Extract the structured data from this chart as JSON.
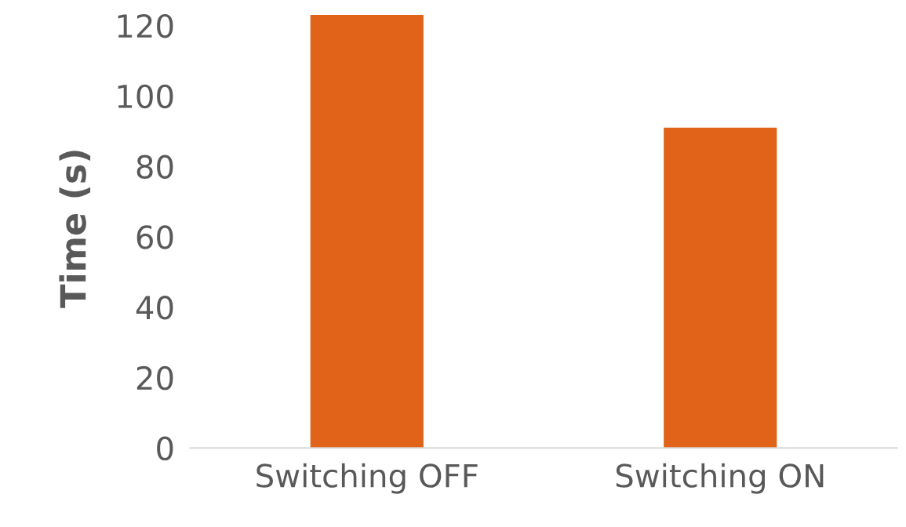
{
  "chart_data": {
    "type": "bar",
    "ylabel": "Time (s)",
    "categories": [
      "Switching OFF",
      "Switching ON"
    ],
    "values": [
      123,
      91
    ],
    "color": "#e06319",
    "ylim": [
      0,
      125
    ],
    "yticks": [
      0,
      20,
      40,
      60,
      80,
      100,
      120
    ],
    "grid": false,
    "legend": false
  }
}
